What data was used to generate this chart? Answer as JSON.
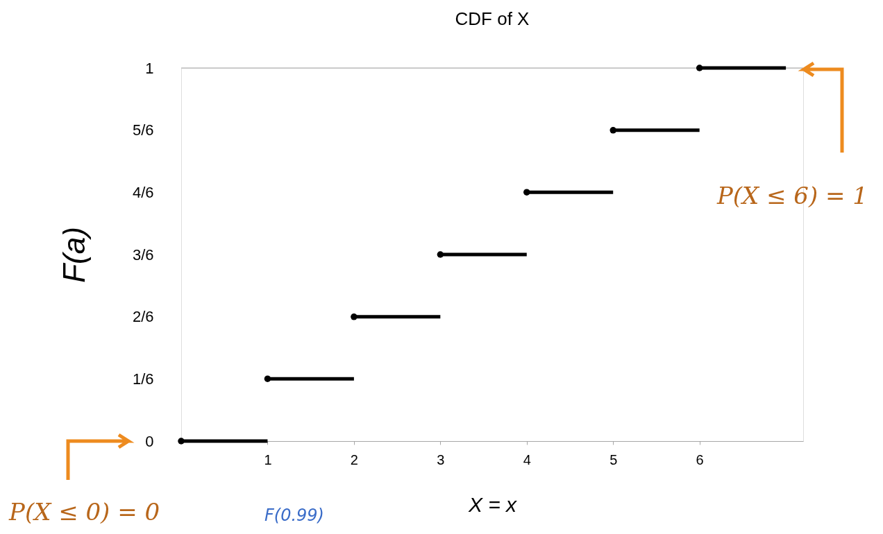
{
  "chart_data": {
    "type": "line",
    "title": "CDF of X",
    "xlabel": "X = x",
    "ylabel": "F(a)",
    "xlim": [
      0,
      7.2
    ],
    "xticks": [
      1,
      2,
      3,
      4,
      5,
      6
    ],
    "ylim": [
      0,
      1
    ],
    "yticks": [
      0,
      {
        "value": 0.167,
        "label": "1/6"
      },
      {
        "value": 0.333,
        "label": "2/6"
      },
      {
        "value": 0.5,
        "label": "3/6"
      },
      {
        "value": 0.667,
        "label": "4/6"
      },
      {
        "value": 0.833,
        "label": "5/6"
      },
      1
    ],
    "series": [
      {
        "type": "scatter",
        "color": "#000000",
        "marker": "circle",
        "x": [
          0,
          1,
          2,
          3,
          4,
          5,
          6
        ],
        "values": [
          0,
          0.167,
          0.333,
          0.5,
          0.667,
          0.833,
          1
        ]
      },
      {
        "color": "#000000",
        "x": [
          0,
          1
        ],
        "values": [
          0,
          0
        ]
      },
      {
        "color": "#000000",
        "x": [
          1,
          2
        ],
        "values": [
          0.167,
          0.167
        ]
      },
      {
        "color": "#000000",
        "x": [
          2,
          3
        ],
        "values": [
          0.333,
          0.333
        ]
      },
      {
        "color": "#000000",
        "x": [
          3,
          4
        ],
        "values": [
          0.5,
          0.5
        ]
      },
      {
        "color": "#000000",
        "x": [
          4,
          5
        ],
        "values": [
          0.667,
          0.667
        ]
      },
      {
        "color": "#000000",
        "x": [
          5,
          6
        ],
        "values": [
          0.833,
          0.833
        ]
      },
      {
        "color": "#000000",
        "x": [
          6,
          7
        ],
        "values": [
          1,
          1
        ]
      }
    ],
    "ref_lines": [
      {
        "axis": "y",
        "value": 1,
        "color": "#a6a6a6"
      }
    ],
    "annotations": [
      "P(X ≤ 0) = 0",
      "P(X ≤ 6) = 1",
      "F(0.99)"
    ],
    "grid": false
  }
}
